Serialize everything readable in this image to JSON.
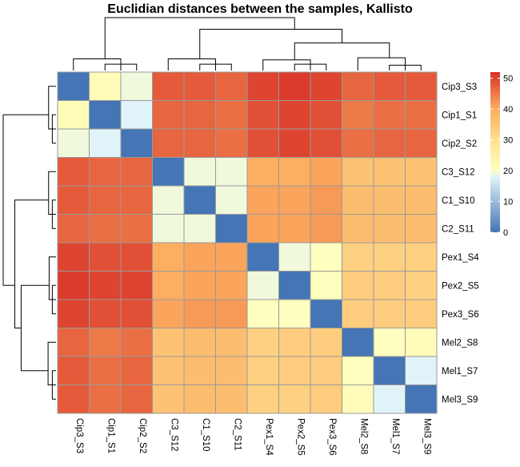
{
  "chart_data": {
    "type": "heatmap",
    "title": "Euclidian distances between the samples, Kallisto",
    "rows": [
      "Cip3_S3",
      "Cip1_S1",
      "Cip2_S2",
      "C3_S12",
      "C1_S10",
      "C2_S11",
      "Pex1_S4",
      "Pex2_S5",
      "Pex3_S6",
      "Mel2_S8",
      "Mel1_S7",
      "Mel3_S9"
    ],
    "columns": [
      "Cip3_S3",
      "Cip1_S1",
      "Cip2_S2",
      "C3_S12",
      "C1_S10",
      "C2_S11",
      "Pex1_S4",
      "Pex2_S5",
      "Pex3_S6",
      "Mel2_S8",
      "Mel1_S7",
      "Mel3_S9"
    ],
    "values": [
      [
        0,
        21,
        19,
        48,
        48,
        47,
        50,
        51,
        50,
        47,
        48,
        48
      ],
      [
        21,
        0,
        18,
        47,
        47,
        46,
        49,
        50,
        49,
        45,
        46,
        46
      ],
      [
        19,
        18,
        0,
        47,
        47,
        46,
        49,
        50,
        49,
        46,
        47,
        47
      ],
      [
        48,
        47,
        47,
        0,
        19,
        19,
        40,
        40,
        41,
        36,
        36,
        36
      ],
      [
        48,
        47,
        47,
        19,
        0,
        19,
        41,
        41,
        42,
        37,
        37,
        37
      ],
      [
        47,
        46,
        46,
        19,
        19,
        0,
        41,
        41,
        42,
        37,
        37,
        37
      ],
      [
        50,
        49,
        49,
        40,
        41,
        41,
        0,
        19,
        20,
        33,
        33,
        33
      ],
      [
        51,
        50,
        50,
        40,
        41,
        41,
        19,
        0,
        20,
        34,
        34,
        33
      ],
      [
        50,
        49,
        49,
        41,
        42,
        42,
        20,
        20,
        0,
        34,
        34,
        34
      ],
      [
        47,
        45,
        46,
        36,
        37,
        37,
        33,
        34,
        34,
        0,
        20,
        21
      ],
      [
        48,
        46,
        47,
        36,
        37,
        37,
        33,
        34,
        34,
        20,
        0,
        18
      ],
      [
        48,
        46,
        47,
        36,
        37,
        37,
        33,
        33,
        34,
        21,
        18,
        0
      ]
    ],
    "color_scale": {
      "min": 0,
      "max": 52,
      "stops": [
        {
          "value": 0,
          "color": "#4575b4"
        },
        {
          "value": 18,
          "color": "#e0f3f8"
        },
        {
          "value": 20,
          "color": "#ffffbf"
        },
        {
          "value": 30,
          "color": "#fee090"
        },
        {
          "value": 40,
          "color": "#fdae61"
        },
        {
          "value": 52,
          "color": "#d73027"
        }
      ],
      "ticks": [
        0,
        10,
        20,
        30,
        40,
        50
      ]
    },
    "legend_position": "right"
  }
}
